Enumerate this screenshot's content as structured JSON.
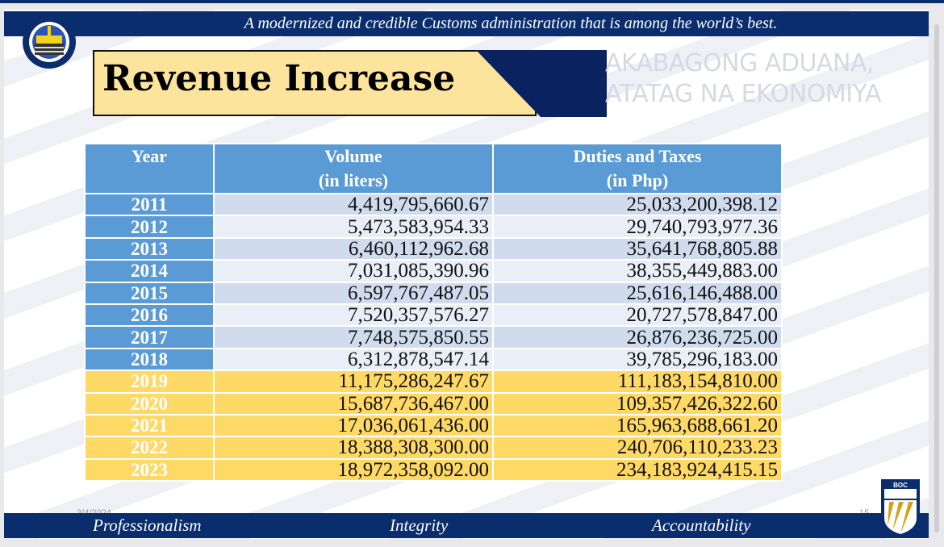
{
  "header": {
    "banner": "A modernized and credible Customs administration that is among the world’s best.",
    "seal_text": "DEPARTMENT OF FINANCE · BUREAU OF CUSTOMS",
    "title": "Revenue Increase",
    "tagline_line1": "AKABAGONG ADUANA,",
    "tagline_line2": "ATATAG NA EKONOMIYA"
  },
  "table": {
    "headers": [
      {
        "line1": "Year",
        "line2": ""
      },
      {
        "line1": "Volume",
        "line2": "(in liters)"
      },
      {
        "line1": "Duties and Taxes",
        "line2": "(in Php)"
      }
    ],
    "rows": [
      {
        "year": "2011",
        "volume": "4,419,795,660.67",
        "duties": "25,033,200,398.12"
      },
      {
        "year": "2012",
        "volume": "5,473,583,954.33",
        "duties": "29,740,793,977.36"
      },
      {
        "year": "2013",
        "volume": "6,460,112,962.68",
        "duties": "35,641,768,805.88"
      },
      {
        "year": "2014",
        "volume": "7,031,085,390.96",
        "duties": "38,355,449,883.00"
      },
      {
        "year": "2015",
        "volume": "6,597,767,487.05",
        "duties": "25,616,146,488.00"
      },
      {
        "year": "2016",
        "volume": "7,520,357,576.27",
        "duties": "20,727,578,847.00"
      },
      {
        "year": "2017",
        "volume": "7,748,575,850.55",
        "duties": "26,876,236,725.00"
      },
      {
        "year": "2018",
        "volume": "6,312,878,547.14",
        "duties": "39,785,296,183.00"
      },
      {
        "year": "2019",
        "volume": "11,175,286,247.67",
        "duties": "111,183,154,810.00"
      },
      {
        "year": "2020",
        "volume": "15,687,736,467.00",
        "duties": "109,357,426,322.60"
      },
      {
        "year": "2021",
        "volume": "17,036,061,436.00",
        "duties": "165,963,688,661.20"
      },
      {
        "year": "2022",
        "volume": "18,388,308,300.00",
        "duties": "240,706,110,233.23"
      },
      {
        "year": "2023",
        "volume": "18,972,358,092.00",
        "duties": "234,183,924,415.15"
      }
    ],
    "highlight_from_year": "2019"
  },
  "footer": {
    "values": [
      "Professionalism",
      "Integrity",
      "Accountability"
    ],
    "date": "3/4/2024",
    "page_number": "15",
    "boc_logo_text": "BOC"
  },
  "colors": {
    "navy": "#0a2d6e",
    "header_blue": "#5b9bd5",
    "highlight_gold": "#ffd966",
    "title_yellow": "#fde49c"
  }
}
